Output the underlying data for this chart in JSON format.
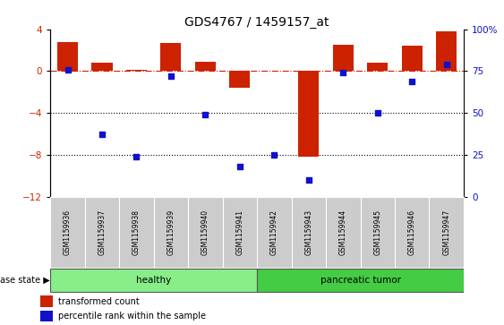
{
  "title": "GDS4767 / 1459157_at",
  "samples": [
    "GSM1159936",
    "GSM1159937",
    "GSM1159938",
    "GSM1159939",
    "GSM1159940",
    "GSM1159941",
    "GSM1159942",
    "GSM1159943",
    "GSM1159944",
    "GSM1159945",
    "GSM1159946",
    "GSM1159947"
  ],
  "red_bars": [
    2.8,
    0.8,
    0.15,
    2.7,
    0.9,
    -1.6,
    0.05,
    -8.2,
    2.5,
    0.8,
    2.4,
    3.8
  ],
  "blue_dots_pct": [
    76,
    37,
    24,
    72,
    49,
    18,
    25,
    10,
    74,
    50,
    69,
    79
  ],
  "ylim_left": [
    -12,
    4
  ],
  "ylim_right": [
    0,
    100
  ],
  "yticks_left": [
    -12,
    -8,
    -4,
    0,
    4
  ],
  "yticks_right": [
    0,
    25,
    50,
    75,
    100
  ],
  "hlines": [
    -4,
    -8
  ],
  "healthy_count": 6,
  "tumor_count": 6,
  "bar_color": "#cc2200",
  "dot_color": "#1111cc",
  "healthy_color": "#88ee88",
  "tumor_color": "#44cc44",
  "bg_color": "#ffffff",
  "label_bg": "#cccccc",
  "tick_color_left": "#cc2200",
  "tick_color_right": "#1111cc",
  "legend_red_label": "transformed count",
  "legend_blue_label": "percentile rank within the sample",
  "disease_state_label": "disease state",
  "healthy_label": "healthy",
  "tumor_label": "pancreatic tumor",
  "bar_width": 0.6
}
